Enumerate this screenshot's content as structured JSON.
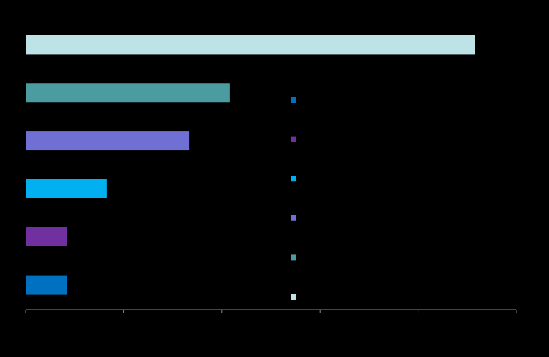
{
  "chart_data": {
    "type": "bar",
    "orientation": "horizontal",
    "categories": [
      null,
      null,
      null,
      null,
      null,
      null
    ],
    "values": [
      8.4,
      8.4,
      16.6,
      33.4,
      41.6,
      91.6
    ],
    "colors": [
      "#0070c0",
      "#7030a0",
      "#00b0f0",
      "#6f6fd4",
      "#4a9ca0",
      "#bde3e6"
    ],
    "xlim": [
      0,
      100
    ],
    "xticks": [
      0,
      20,
      40,
      60,
      80,
      100
    ],
    "grid": false
  }
}
